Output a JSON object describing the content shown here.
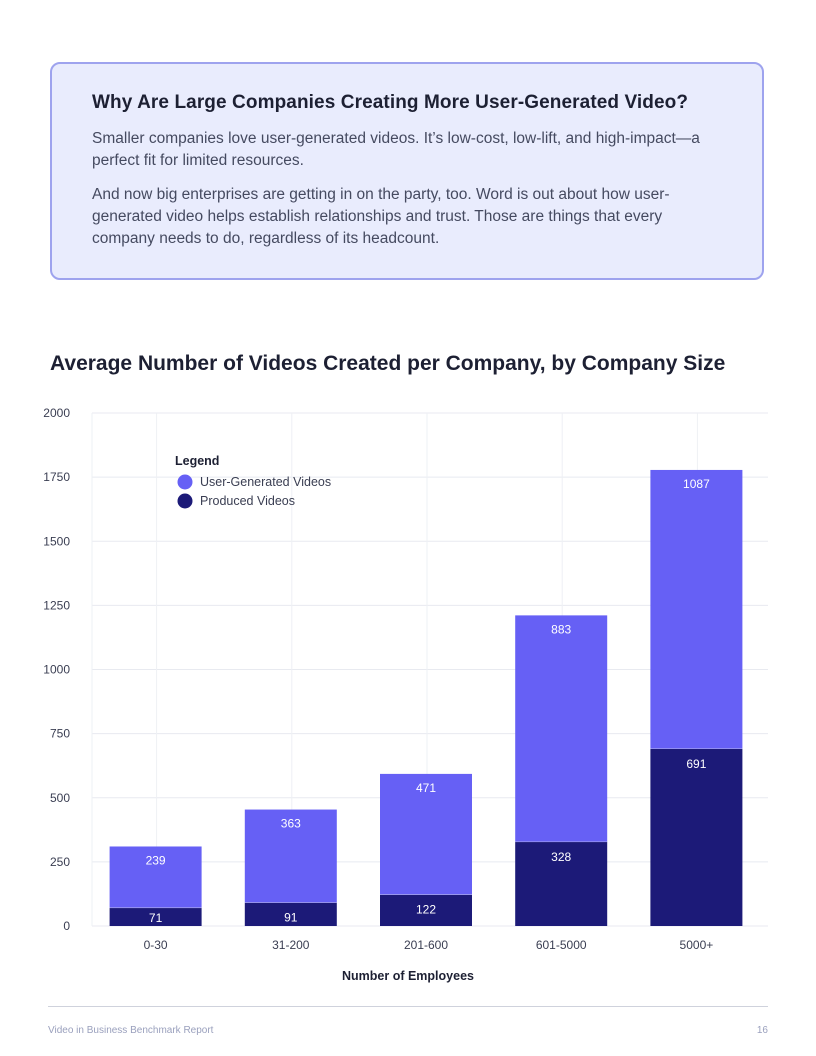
{
  "callout": {
    "heading": "Why Are Large Companies Creating More User-Generated Video?",
    "paragraph1": "Smaller companies love user-generated videos. It’s low-cost, low-lift, and high-impact—a perfect fit for limited resources.",
    "paragraph2": "And now big enterprises are getting in on the party, too. Word is out about how user-generated video helps establish relationships and trust. Those are things that every company needs to do, regardless of its headcount."
  },
  "chart_data": {
    "type": "bar",
    "stacked": true,
    "title": "Average Number of Videos Created per Company, by Company Size",
    "xlabel": "Number of Employees",
    "ylabel": "",
    "ylim": [
      0,
      2000
    ],
    "yticks": [
      0,
      250,
      500,
      750,
      1000,
      1250,
      1500,
      1750,
      2000
    ],
    "categories": [
      "0-30",
      "31-200",
      "201-600",
      "601-5000",
      "5000+"
    ],
    "series": [
      {
        "name": "Produced Videos",
        "values": [
          71,
          91,
          122,
          328,
          691
        ],
        "color": "#1c1a78"
      },
      {
        "name": "User-Generated Videos",
        "values": [
          239,
          363,
          471,
          883,
          1087
        ],
        "color": "#6660f5"
      }
    ],
    "legend": {
      "title": "Legend",
      "position": "top-left",
      "entries": [
        "User-Generated Videos",
        "Produced Videos"
      ]
    },
    "grid": true
  },
  "footer": {
    "left": "Video in Business Benchmark Report",
    "page": "16"
  },
  "colors": {
    "callout_bg": "#e9ecfd",
    "callout_border": "#9ea3ee",
    "ugc": "#6660f5",
    "produced": "#1c1a78"
  }
}
